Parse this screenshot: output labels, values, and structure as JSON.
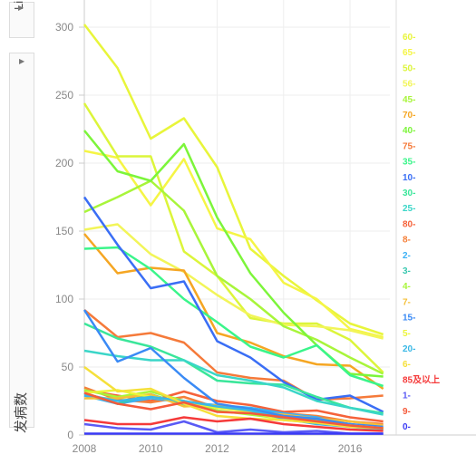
{
  "controls": {
    "scale_label": "Lin",
    "scale_arrow": "▶",
    "collapse_arrow": "▶"
  },
  "chart_data": {
    "type": "line",
    "ylabel": "发病数",
    "xlabel": "",
    "xlim": [
      2008,
      2017.2
    ],
    "ylim": [
      0,
      320
    ],
    "x_ticks": [
      2008,
      2010,
      2012,
      2014,
      2016
    ],
    "y_ticks": [
      0,
      50,
      100,
      150,
      200,
      250,
      300
    ],
    "x": [
      2008,
      2009,
      2010,
      2011,
      2012,
      2013,
      2014,
      2015,
      2016,
      2017
    ],
    "grid": true,
    "legend_position": "right",
    "series": [
      {
        "name": "60-",
        "color": "#e8f53a",
        "values": [
          302,
          270,
          218,
          233,
          197,
          137,
          117,
          99,
          82,
          74
        ]
      },
      {
        "name": "65-",
        "color": "#f5f545",
        "values": [
          209,
          204,
          169,
          203,
          152,
          144,
          112,
          100,
          78,
          72
        ]
      },
      {
        "name": "50-",
        "color": "#dcf53a",
        "values": [
          244,
          205,
          205,
          135,
          117,
          86,
          82,
          82,
          70,
          46
        ]
      },
      {
        "name": "56-",
        "color": "#f2f558",
        "values": [
          151,
          155,
          133,
          120,
          103,
          88,
          81,
          80,
          77,
          71
        ]
      },
      {
        "name": "45-",
        "color": "#a8f53a",
        "values": [
          164,
          175,
          187,
          165,
          117,
          100,
          80,
          70,
          57,
          45
        ]
      },
      {
        "name": "70-",
        "color": "#f5a623",
        "values": [
          148,
          119,
          123,
          121,
          75,
          68,
          58,
          52,
          51,
          34
        ]
      },
      {
        "name": "40-",
        "color": "#7cf53a",
        "values": [
          224,
          194,
          187,
          214,
          160,
          119,
          90,
          66,
          45,
          43
        ]
      },
      {
        "name": "75-",
        "color": "#f57a3a",
        "values": [
          92,
          72,
          75,
          68,
          46,
          42,
          40,
          26,
          27,
          29
        ]
      },
      {
        "name": "35-",
        "color": "#3af58a",
        "values": [
          137,
          138,
          122,
          100,
          83,
          65,
          57,
          66,
          44,
          36
        ]
      },
      {
        "name": "10-",
        "color": "#3a6ef5",
        "values": [
          175,
          140,
          108,
          113,
          69,
          57,
          39,
          26,
          29,
          17
        ]
      },
      {
        "name": "30-",
        "color": "#3ae69a",
        "values": [
          82,
          71,
          65,
          55,
          40,
          38,
          37,
          28,
          20,
          16
        ]
      },
      {
        "name": "25-",
        "color": "#3ad6c8",
        "values": [
          62,
          58,
          55,
          55,
          44,
          40,
          35,
          25,
          20,
          15
        ]
      },
      {
        "name": "80-",
        "color": "#f5623a",
        "values": [
          33,
          29,
          25,
          32,
          25,
          22,
          17,
          18,
          13,
          10
        ]
      },
      {
        "name": "8-",
        "color": "#f5803a",
        "values": [
          35,
          26,
          24,
          28,
          20,
          18,
          16,
          14,
          10,
          8
        ]
      },
      {
        "name": "2-",
        "color": "#3ab0f5",
        "values": [
          29,
          23,
          27,
          24,
          22,
          20,
          16,
          13,
          7,
          5
        ]
      },
      {
        "name": "3-",
        "color": "#3ac8b0",
        "values": [
          31,
          23,
          30,
          22,
          21,
          19,
          14,
          11,
          8,
          5
        ]
      },
      {
        "name": "4-",
        "color": "#a8f53a",
        "values": [
          33,
          28,
          32,
          25,
          18,
          15,
          12,
          10,
          7,
          4
        ]
      },
      {
        "name": "7-",
        "color": "#f5c03a",
        "values": [
          27,
          27,
          30,
          21,
          22,
          17,
          15,
          12,
          10,
          7
        ]
      },
      {
        "name": "15-",
        "color": "#3a8af5",
        "values": [
          92,
          54,
          64,
          42,
          23,
          19,
          14,
          12,
          8,
          6
        ]
      },
      {
        "name": "5-",
        "color": "#ecf53a",
        "values": [
          31,
          33,
          28,
          25,
          20,
          17,
          11,
          9,
          7,
          5
        ]
      },
      {
        "name": "20-",
        "color": "#3ab8e6",
        "values": [
          30,
          25,
          28,
          25,
          21,
          18,
          12,
          8,
          6,
          4
        ]
      },
      {
        "name": "6-",
        "color": "#f5e03a",
        "values": [
          50,
          32,
          34,
          23,
          14,
          12,
          11,
          9,
          6,
          5
        ]
      },
      {
        "name": "85及以上",
        "color": "#f53a3a",
        "values": [
          11,
          8,
          8,
          13,
          10,
          12,
          8,
          6,
          4,
          3
        ]
      },
      {
        "name": "1-",
        "color": "#5a5af5",
        "values": [
          8,
          5,
          4,
          10,
          2,
          4,
          2,
          3,
          1,
          1
        ]
      },
      {
        "name": "9-",
        "color": "#f55a3a",
        "values": [
          31,
          23,
          19,
          24,
          17,
          16,
          13,
          10,
          7,
          5
        ]
      },
      {
        "name": "0-",
        "color": "#3a3af5",
        "values": [
          1,
          1,
          1,
          1,
          1,
          1,
          1,
          1,
          1,
          1
        ]
      }
    ]
  }
}
